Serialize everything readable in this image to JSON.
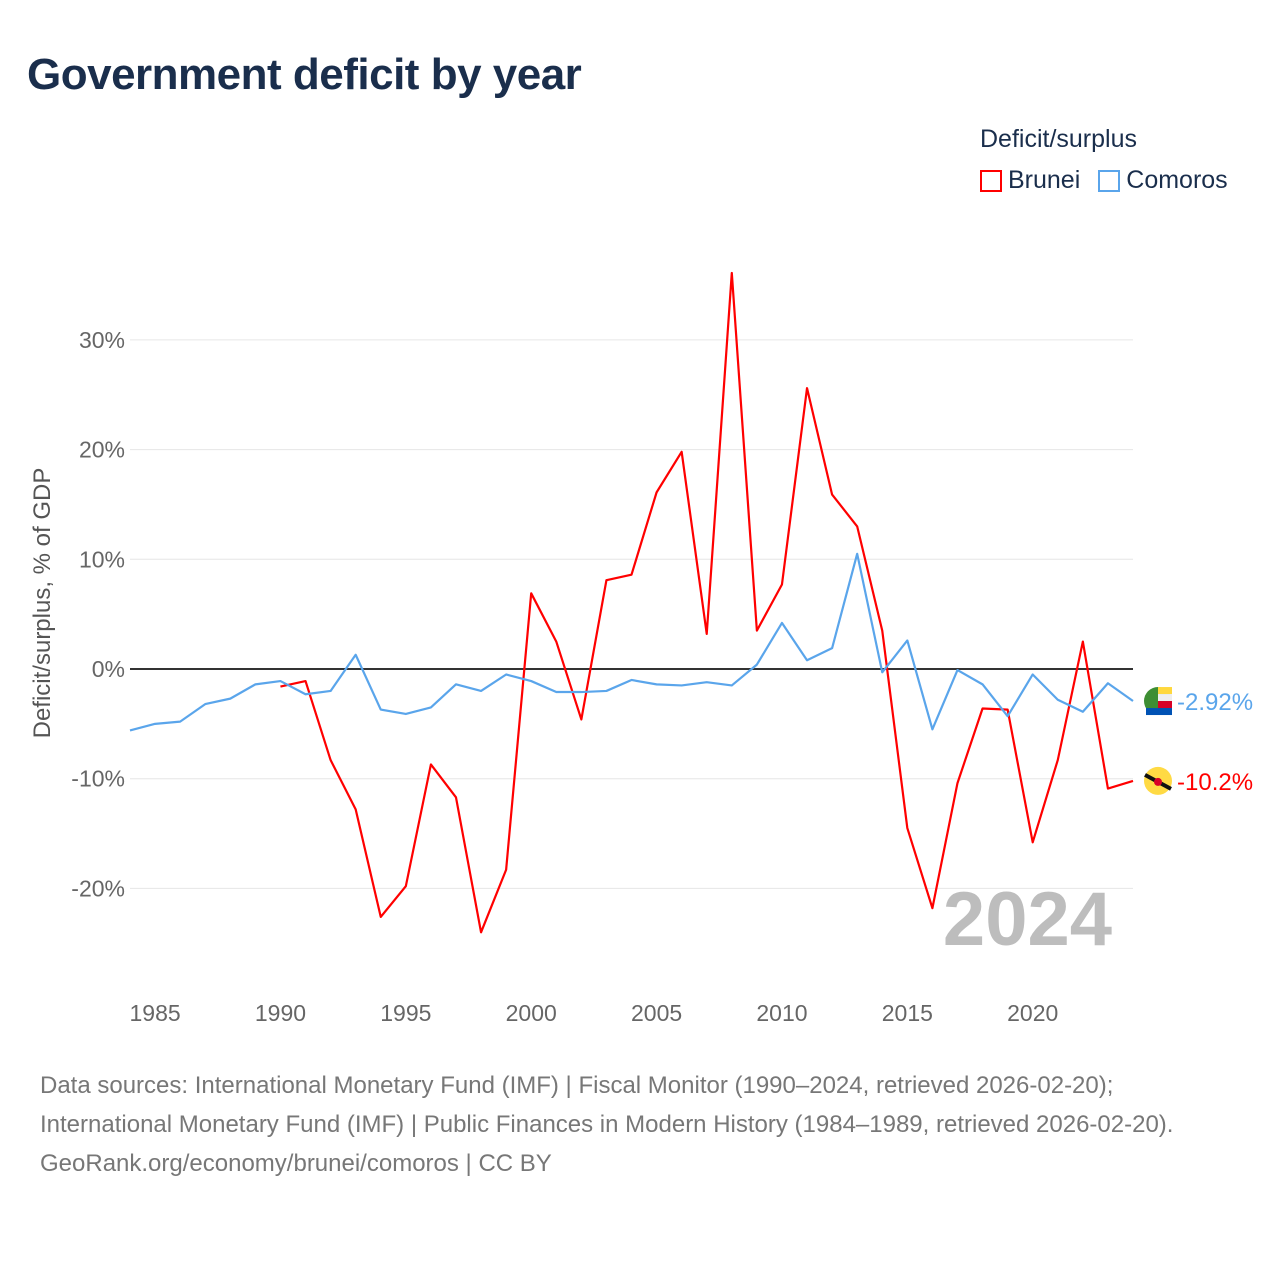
{
  "title": "Government deficit by year",
  "legend": {
    "title": "Deficit/surplus",
    "items": [
      {
        "name": "Brunei",
        "color": "#ff0000"
      },
      {
        "name": "Comoros",
        "color": "#5aa5eb"
      }
    ]
  },
  "watermark_year": "2024",
  "footer": {
    "sources": "Data sources: International Monetary Fund (IMF) | Fiscal Monitor (1990–2024, retrieved 2026-02-20); International Monetary Fund (IMF) | Public Finances in Modern History (1984–1989, retrieved 2026-02-20).",
    "credit": "GeoRank.org/economy/brunei/comoros | CC BY"
  },
  "chart_data": {
    "type": "line",
    "title": "Government deficit by year",
    "xlabel": "",
    "ylabel": "Deficit/surplus, % of GDP",
    "xlim": [
      1984,
      2024
    ],
    "ylim": [
      -27,
      37
    ],
    "x_ticks": [
      1985,
      1990,
      1995,
      2000,
      2005,
      2010,
      2015,
      2020
    ],
    "y_ticks": [
      {
        "v": 30,
        "l": "30%"
      },
      {
        "v": 20,
        "l": "20%"
      },
      {
        "v": 10,
        "l": "10%"
      },
      {
        "v": 0,
        "l": "0%"
      },
      {
        "v": -10,
        "l": "-10%"
      },
      {
        "v": -20,
        "l": "-20%"
      }
    ],
    "grid": true,
    "legend_position": "top-right",
    "series": [
      {
        "name": "Brunei",
        "color": "#ff0000",
        "end_label": "-10.2%",
        "x_start": 1990,
        "values": [
          -1.6,
          -1.1,
          -8.3,
          -12.8,
          -22.6,
          -19.8,
          -8.7,
          -11.7,
          -24.0,
          -18.3,
          6.9,
          2.5,
          -4.6,
          8.1,
          8.6,
          16.1,
          19.8,
          3.2,
          36.1,
          3.5,
          7.7,
          25.6,
          15.9,
          13.0,
          3.5,
          -14.5,
          -21.8,
          -10.4,
          -3.6,
          -3.7,
          -15.8,
          -8.3,
          2.5,
          -10.9,
          -10.2
        ]
      },
      {
        "name": "Comoros",
        "color": "#5aa5eb",
        "end_label": "-2.92%",
        "x_start": 1984,
        "values": [
          -5.6,
          -5.0,
          -4.8,
          -3.2,
          -2.7,
          -1.4,
          -1.1,
          -2.3,
          -2.0,
          1.3,
          -3.7,
          -4.1,
          -3.5,
          -1.4,
          -2.0,
          -0.5,
          -1.1,
          -2.1,
          -2.1,
          -2.0,
          -1.0,
          -1.4,
          -1.5,
          -1.2,
          -1.5,
          0.4,
          4.2,
          0.8,
          1.9,
          10.5,
          -0.3,
          2.6,
          -5.5,
          -0.1,
          -1.4,
          -4.3,
          -0.5,
          -2.8,
          -3.9,
          -1.3,
          -2.92
        ]
      }
    ]
  }
}
